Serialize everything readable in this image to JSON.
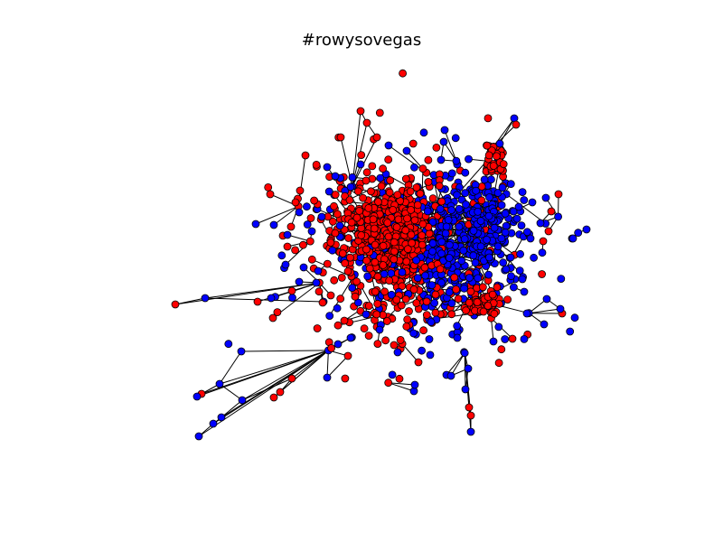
{
  "title": "#rowysovegas",
  "colors": {
    "node_a": "#ff0000",
    "node_b": "#0000ff",
    "edge": "#000000",
    "node_outline": "#000000",
    "background": "#ffffff"
  },
  "legend": null
}
